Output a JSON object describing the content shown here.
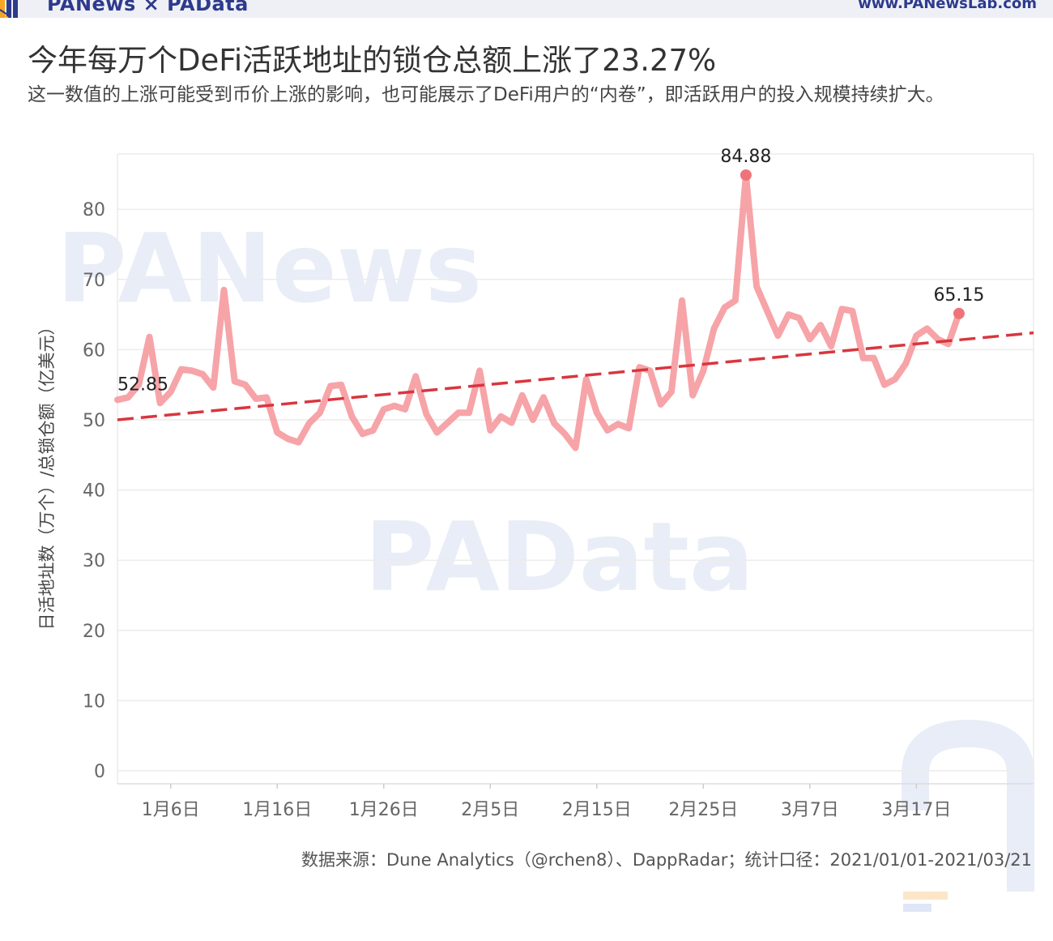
{
  "header": {
    "brand": "PANews × PAData",
    "site": "www.PANewsLab.com"
  },
  "title": "今年每万个DeFi活跃地址的锁仓总额上涨了23.27%",
  "subtitle": "这一数值的上涨可能受到币价上涨的影响，也可能展示了DeFi用户的“内卷”，即活跃用户的投入规模持续扩大。",
  "watermarks": [
    "PANews",
    "PAData"
  ],
  "source": "数据来源：Dune Analytics（@rchen8）、DappRadar；统计口径：2021/01/01-2021/03/21",
  "colors": {
    "line": "#f59a9e",
    "trend": "#d9363e",
    "point": "#ef7479",
    "grid": "#ececec",
    "axis_text": "#666666"
  },
  "chart_data": {
    "type": "line",
    "ylabel": "日活地址数（万个）/总锁仓额（亿美元）",
    "ylim": [
      0,
      88
    ],
    "yticks": [
      0,
      10,
      20,
      30,
      40,
      50,
      60,
      70,
      80
    ],
    "xlim": [
      "2021-01-01",
      "2021-03-28"
    ],
    "xticks": [
      {
        "date": "2021-01-06",
        "label": "1月6日"
      },
      {
        "date": "2021-01-16",
        "label": "1月16日"
      },
      {
        "date": "2021-01-26",
        "label": "1月26日"
      },
      {
        "date": "2021-02-05",
        "label": "2月5日"
      },
      {
        "date": "2021-02-15",
        "label": "2月15日"
      },
      {
        "date": "2021-02-25",
        "label": "2月25日"
      },
      {
        "date": "2021-03-07",
        "label": "3月7日"
      },
      {
        "date": "2021-03-17",
        "label": "3月17日"
      }
    ],
    "grid": true,
    "series": [
      {
        "start_date": "2021-01-01",
        "values": [
          52.85,
          53.2,
          55.0,
          61.8,
          52.4,
          54.0,
          57.2,
          57.0,
          56.5,
          54.6,
          68.5,
          55.5,
          55.0,
          53.0,
          53.2,
          48.2,
          47.3,
          46.8,
          49.5,
          51.0,
          54.8,
          55.0,
          50.5,
          48.0,
          48.5,
          51.5,
          52.0,
          51.5,
          56.2,
          50.8,
          48.2,
          49.6,
          51.0,
          51.0,
          57.0,
          48.5,
          50.5,
          49.6,
          53.5,
          50.0,
          53.2,
          49.5,
          48.0,
          46.0,
          55.8,
          51.0,
          48.5,
          49.4,
          48.8,
          57.5,
          57.0,
          52.2,
          54.0,
          67.0,
          53.5,
          57.0,
          63.0,
          66.0,
          67.0,
          84.88,
          69.0,
          65.5,
          62.0,
          65.0,
          64.5,
          61.5,
          63.5,
          60.5,
          65.8,
          65.5,
          58.8,
          58.8,
          55.0,
          55.8,
          58.0,
          62.0,
          63.0,
          61.5,
          60.8,
          65.15
        ]
      }
    ],
    "trend": {
      "start_value": 50.0,
      "end_value": 62.4,
      "start_date": "2021-01-01",
      "end_date": "2021-03-28"
    },
    "annotations": [
      {
        "date": "2021-01-01",
        "value": 52.85,
        "text": "52.85"
      },
      {
        "date": "2021-02-29",
        "value": 84.88,
        "text": "84.88"
      },
      {
        "date": "2021-03-21",
        "value": 65.15,
        "text": "65.15"
      }
    ]
  }
}
